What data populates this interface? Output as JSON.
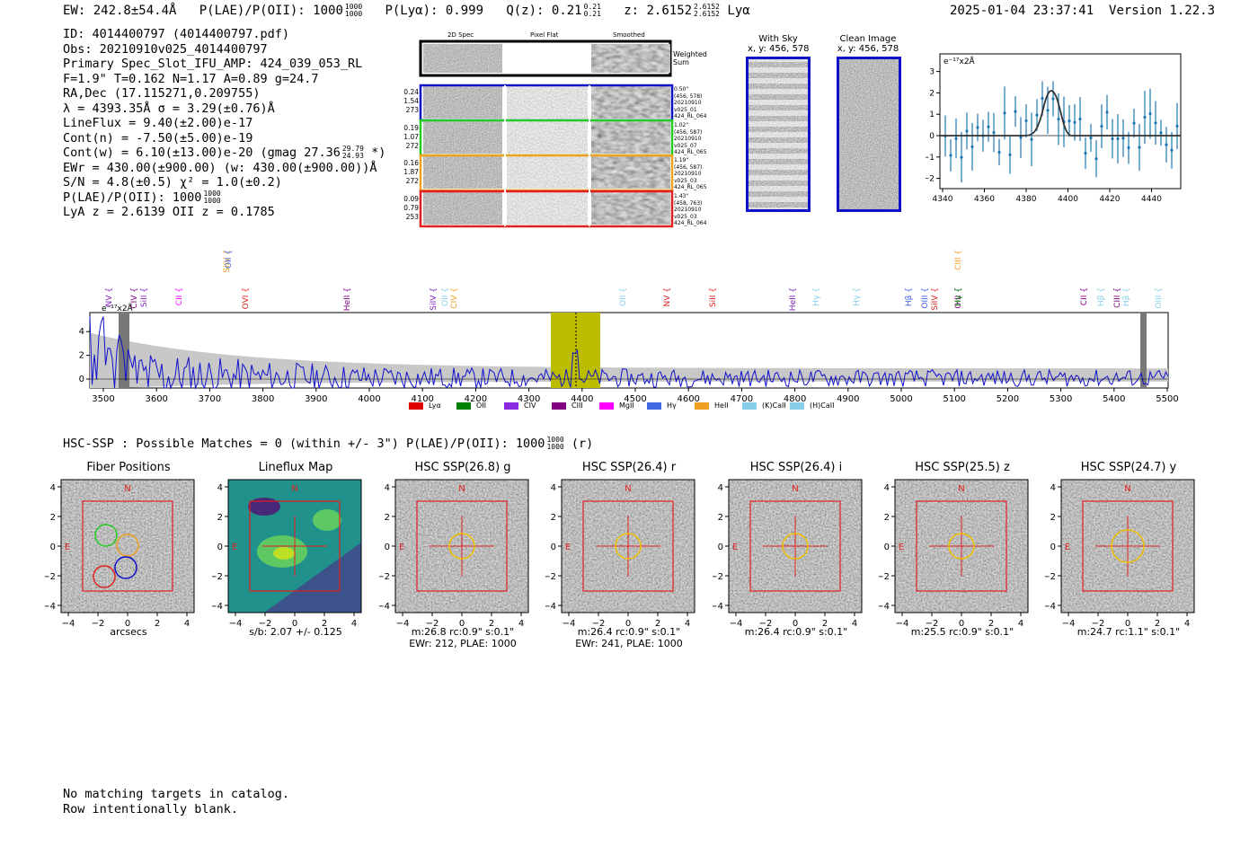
{
  "header": {
    "ew": "EW: 242.8±54.4Å",
    "plae_label": "P(LAE)/P(OII): 1000",
    "plae_hi": "1000",
    "plae_lo": "1000",
    "plya": "P(Lyα): 0.999",
    "qz_label": "Q(z): 0.21",
    "qz_hi": "0.21",
    "qz_lo": "0.21",
    "z_label": "z: 2.6152",
    "z_hi": "2.6152",
    "z_lo": "2.6152",
    "z_line": "Lyα",
    "timestamp": "2025-01-04 23:37:41",
    "version": "Version 1.22.3"
  },
  "info": {
    "id": "ID: 4014400797 (4014400797.pdf)",
    "obs": "Obs: 20210910v025_4014400797",
    "primary": "Primary Spec_Slot_IFU_AMP: 424_039_053_RL",
    "fwhm": "F=1.9\"  T=0.162  N=1.17  A=0.89  g=24.7",
    "radec": "RA,Dec (17.115271,0.209755)",
    "lambda": "λ = 4393.35Å   σ = 3.29(±0.76)Å",
    "lineflux": "LineFlux = 9.40(±2.00)e-17",
    "contn": "Cont(n) = -7.50(±5.00)e-19",
    "contw": "Cont(w) = 6.10(±13.00)e-20 (gmag 27.36",
    "contw_hi": "29.79",
    "contw_lo": "24.93",
    "contw_end": "*)",
    "ewr": "EWr = 430.00(±900.00) (w: 430.00(±900.00))Å",
    "sn": "S/N = 4.8(±0.5)  χ² = 1.0(±0.2)",
    "plae": "P(LAE)/P(OII): 1000",
    "plae_hi": "1000",
    "plae_lo": "1000",
    "lyaz": "LyA z = 2.6139   OII z = 0.1785"
  },
  "cutouts": {
    "col_2d": "2D Spec",
    "col_flat": "Pixel Flat",
    "col_smooth": "Smoothed",
    "weighted": "Weighted Sum",
    "rows": [
      {
        "left": [
          "0.24",
          "1.54",
          "273"
        ],
        "right": [
          "0.50\"",
          "(456, 578)",
          "20210910",
          "v025_01",
          "424_RL_064"
        ],
        "color": "#1010c8"
      },
      {
        "left": [
          "0.19",
          "1.07",
          "272"
        ],
        "right": [
          "1.02\"",
          "(456, 587)",
          "20210910",
          "v025_07",
          "424_RL_065"
        ],
        "color": "#22cc22"
      },
      {
        "left": [
          "0.16",
          "1.87",
          "272"
        ],
        "right": [
          "1.19\"",
          "(456, 587)",
          "20210910",
          "v025_03",
          "424_RL_065"
        ],
        "color": "#f0a020"
      },
      {
        "left": [
          "0.09",
          "0.79",
          "253"
        ],
        "right": [
          "1.43\"",
          "(458, 763)",
          "20210910",
          "v025_03",
          "424_RL_064"
        ],
        "color": "#e02020"
      }
    ]
  },
  "sky": {
    "with_sky": "With Sky",
    "with_sky_xy": "x, y: 456, 578",
    "clean": "Clean Image",
    "clean_xy": "x, y: 456, 578"
  },
  "zoom_plot": {
    "unit": "e⁻¹⁷x2Å",
    "xticks": [
      "4340",
      "4360",
      "4380",
      "4400",
      "4420",
      "4440"
    ],
    "yticks": [
      "3",
      "2",
      "1",
      "0",
      "−1",
      "−2"
    ]
  },
  "full_spec": {
    "unit": "e⁻¹⁷x2Å",
    "xticks": [
      "3500",
      "3600",
      "3700",
      "3800",
      "3900",
      "4000",
      "4100",
      "4200",
      "4300",
      "4400",
      "4500",
      "4600",
      "4700",
      "4800",
      "4900",
      "5000",
      "5100",
      "5200",
      "5300",
      "5400",
      "5500"
    ],
    "yticks": [
      "4",
      "2",
      "0"
    ],
    "lines": [
      {
        "label": "NV",
        "color": "#8020c0",
        "row": 0
      },
      {
        "label": "CIV",
        "color": "#800080",
        "row": 0
      },
      {
        "label": "SiII",
        "color": "#8020c0",
        "row": 0
      },
      {
        "label": "CII",
        "color": "#ff00ff",
        "row": 0
      },
      {
        "label": "SiIV",
        "color": "#f0a020",
        "row": 1
      },
      {
        "label": "OII",
        "color": "#4060e0",
        "row": 1
      },
      {
        "label": "OVI",
        "color": "#e02020",
        "row": 0
      },
      {
        "label": "HeII",
        "color": "#800080",
        "row": 0
      },
      {
        "label": "SiIV",
        "color": "#8020c0",
        "row": 0
      },
      {
        "label": "OII",
        "color": "#87ceeb",
        "row": 0
      },
      {
        "label": "CIV",
        "color": "#f0a020",
        "row": 0
      },
      {
        "label": "OII",
        "color": "#87ceeb",
        "row": 0
      },
      {
        "label": "NV",
        "color": "#e02020",
        "row": 0
      },
      {
        "label": "SiII",
        "color": "#e02020",
        "row": 0
      },
      {
        "label": "HeII",
        "color": "#8020c0",
        "row": 0
      },
      {
        "label": "Hγ",
        "color": "#87ceeb",
        "row": 0
      },
      {
        "label": "Hγ",
        "color": "#87ceeb",
        "row": 0
      },
      {
        "label": "Hβ",
        "color": "#4060e0",
        "row": 0
      },
      {
        "label": "OIII",
        "color": "#4060e0",
        "row": 0
      },
      {
        "label": "SiIV",
        "color": "#e02020",
        "row": 0
      },
      {
        "label": "OIII",
        "color": "#800080",
        "row": 0
      },
      {
        "label": "CIII",
        "color": "#f0a020",
        "row": 1
      },
      {
        "label": "Hγ",
        "color": "#008000",
        "row": 0
      },
      {
        "label": "CII",
        "color": "#800080",
        "row": 0
      },
      {
        "label": "Hβ",
        "color": "#87ceeb",
        "row": 0
      },
      {
        "label": "CIII",
        "color": "#800080",
        "row": 0
      },
      {
        "label": "Hβ",
        "color": "#87ceeb",
        "row": 0
      },
      {
        "label": "OIII",
        "color": "#87ceeb",
        "row": 0
      }
    ],
    "legend": [
      {
        "label": "Lyα",
        "color": "#e00000"
      },
      {
        "label": "OII",
        "color": "#008000"
      },
      {
        "label": "CIV",
        "color": "#8a2be2"
      },
      {
        "label": "CIII",
        "color": "#800080"
      },
      {
        "label": "MgII",
        "color": "#ff00ff"
      },
      {
        "label": "Hγ",
        "color": "#4169e1"
      },
      {
        "label": "HeII",
        "color": "#f0a020"
      },
      {
        "label": "(K)CaII",
        "color": "#87ceeb"
      },
      {
        "label": "(H)CaII",
        "color": "#87ceeb"
      }
    ]
  },
  "hsc": {
    "title": "HSC-SSP : Possible Matches = 0 (within +/- 3\")  P(LAE)/P(OII): 1000",
    "title_hi": "1000",
    "title_lo": "1000",
    "title_end": "(r)",
    "ticks": [
      "−4",
      "−2",
      "0",
      "2",
      "4"
    ],
    "yticks": [
      "4",
      "2",
      "0",
      "−2",
      "−4"
    ],
    "n_label": "N",
    "e_label": "E",
    "panels": [
      {
        "title": "Fiber Positions",
        "caption": [
          "arcsecs"
        ]
      },
      {
        "title": "Lineflux Map",
        "caption": [
          "s/b: 2.07 +/- 0.125"
        ]
      },
      {
        "title": "HSC SSP(26.8) g",
        "caption": [
          "m:26.8 rc:0.9\"  s:0.1\"",
          "EWr: 212, PLAE: 1000"
        ]
      },
      {
        "title": "HSC SSP(26.4) r",
        "caption": [
          "m:26.4 rc:0.9\"  s:0.1\"",
          "EWr: 241, PLAE: 1000"
        ]
      },
      {
        "title": "HSC SSP(26.4) i",
        "caption": [
          "m:26.4 rc:0.9\"  s:0.1\""
        ]
      },
      {
        "title": "HSC SSP(25.5) z",
        "caption": [
          "m:25.5 rc:0.9\"  s:0.1\""
        ]
      },
      {
        "title": "HSC SSP(24.7) y",
        "caption": [
          "m:24.7 rc:1.1\"  s:0.1\""
        ]
      }
    ]
  },
  "footer": {
    "line1": "No matching targets in catalog.",
    "line2": "Row intentionally blank."
  }
}
